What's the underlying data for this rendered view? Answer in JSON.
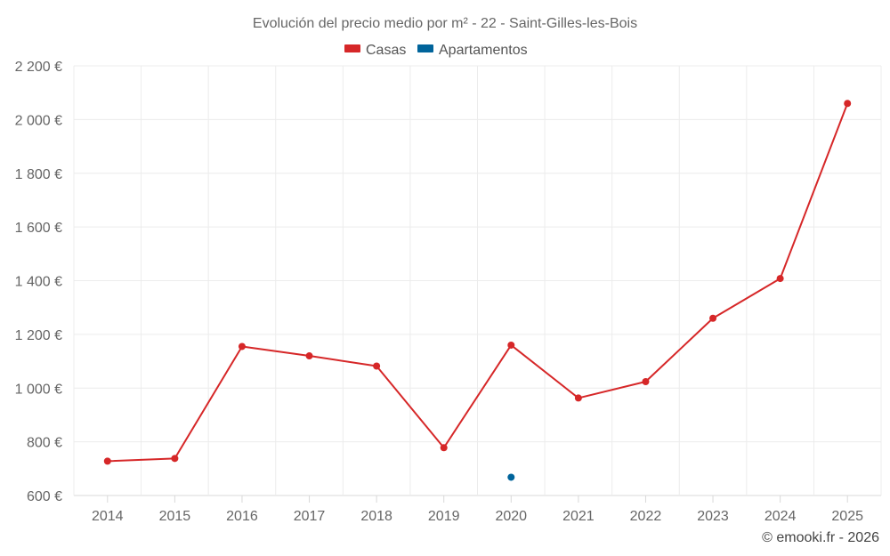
{
  "chart_data": {
    "type": "line",
    "title": "Evolución del precio medio por m² - 22 - Saint-Gilles-les-Bois",
    "categories": [
      "2014",
      "2015",
      "2016",
      "2017",
      "2018",
      "2019",
      "2020",
      "2021",
      "2022",
      "2023",
      "2024",
      "2025"
    ],
    "series": [
      {
        "name": "Casas",
        "color": "#d62728",
        "values": [
          728,
          738,
          1155,
          1120,
          1082,
          778,
          1160,
          963,
          1024,
          1260,
          1408,
          2060
        ]
      },
      {
        "name": "Apartamentos",
        "color": "#00649b",
        "values": [
          null,
          null,
          null,
          null,
          null,
          null,
          668,
          null,
          null,
          null,
          null,
          null
        ]
      }
    ],
    "ylim": [
      600,
      2200
    ],
    "yticks": [
      600,
      800,
      1000,
      1200,
      1400,
      1600,
      1800,
      2000,
      2200
    ],
    "ytick_labels": [
      "600 €",
      "800 €",
      "1 000 €",
      "1 200 €",
      "1 400 €",
      "1 600 €",
      "1 800 €",
      "2 000 €",
      "2 200 €"
    ],
    "grid": true,
    "legend": "top-center",
    "xlabel": "",
    "ylabel": ""
  },
  "credit": "© emooki.fr - 2026"
}
